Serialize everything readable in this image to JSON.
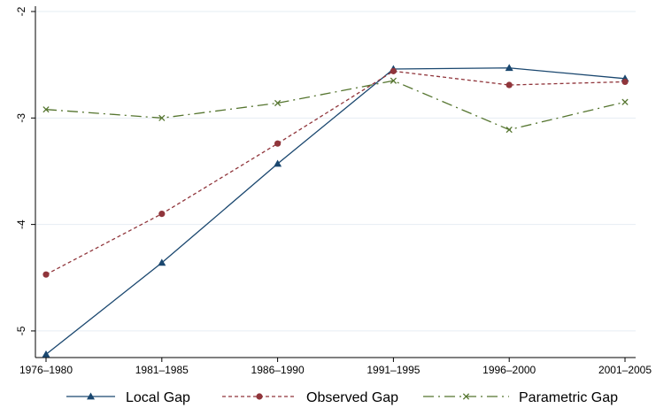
{
  "chart_data": {
    "type": "line",
    "title": "",
    "xlabel": "",
    "ylabel": "",
    "categories": [
      "1976–1980",
      "1981–1985",
      "1986–1990",
      "1991–1995",
      "1996–2000",
      "2001–2005"
    ],
    "ylim": [
      -5.25,
      -1.95
    ],
    "yticks": [
      -2,
      -3,
      -4,
      -5
    ],
    "ytick_labels": [
      "-2",
      "-3",
      "-4",
      "-5"
    ],
    "grid": true,
    "legend_position": "bottom",
    "series": [
      {
        "name": "Local Gap",
        "values": [
          -5.22,
          -4.36,
          -3.43,
          -2.54,
          -2.53,
          -2.63
        ],
        "color": "#1a476f",
        "dash": "solid",
        "marker": "triangle"
      },
      {
        "name": "Observed Gap",
        "values": [
          -4.47,
          -3.9,
          -3.24,
          -2.56,
          -2.69,
          -2.66
        ],
        "color": "#90353b",
        "dash": "short-dash",
        "marker": "circle"
      },
      {
        "name": "Parametric Gap",
        "values": [
          -2.92,
          -3.0,
          -2.86,
          -2.65,
          -3.11,
          -2.85
        ],
        "color": "#55752f",
        "dash": "long-dash-dot",
        "marker": "x"
      }
    ]
  }
}
